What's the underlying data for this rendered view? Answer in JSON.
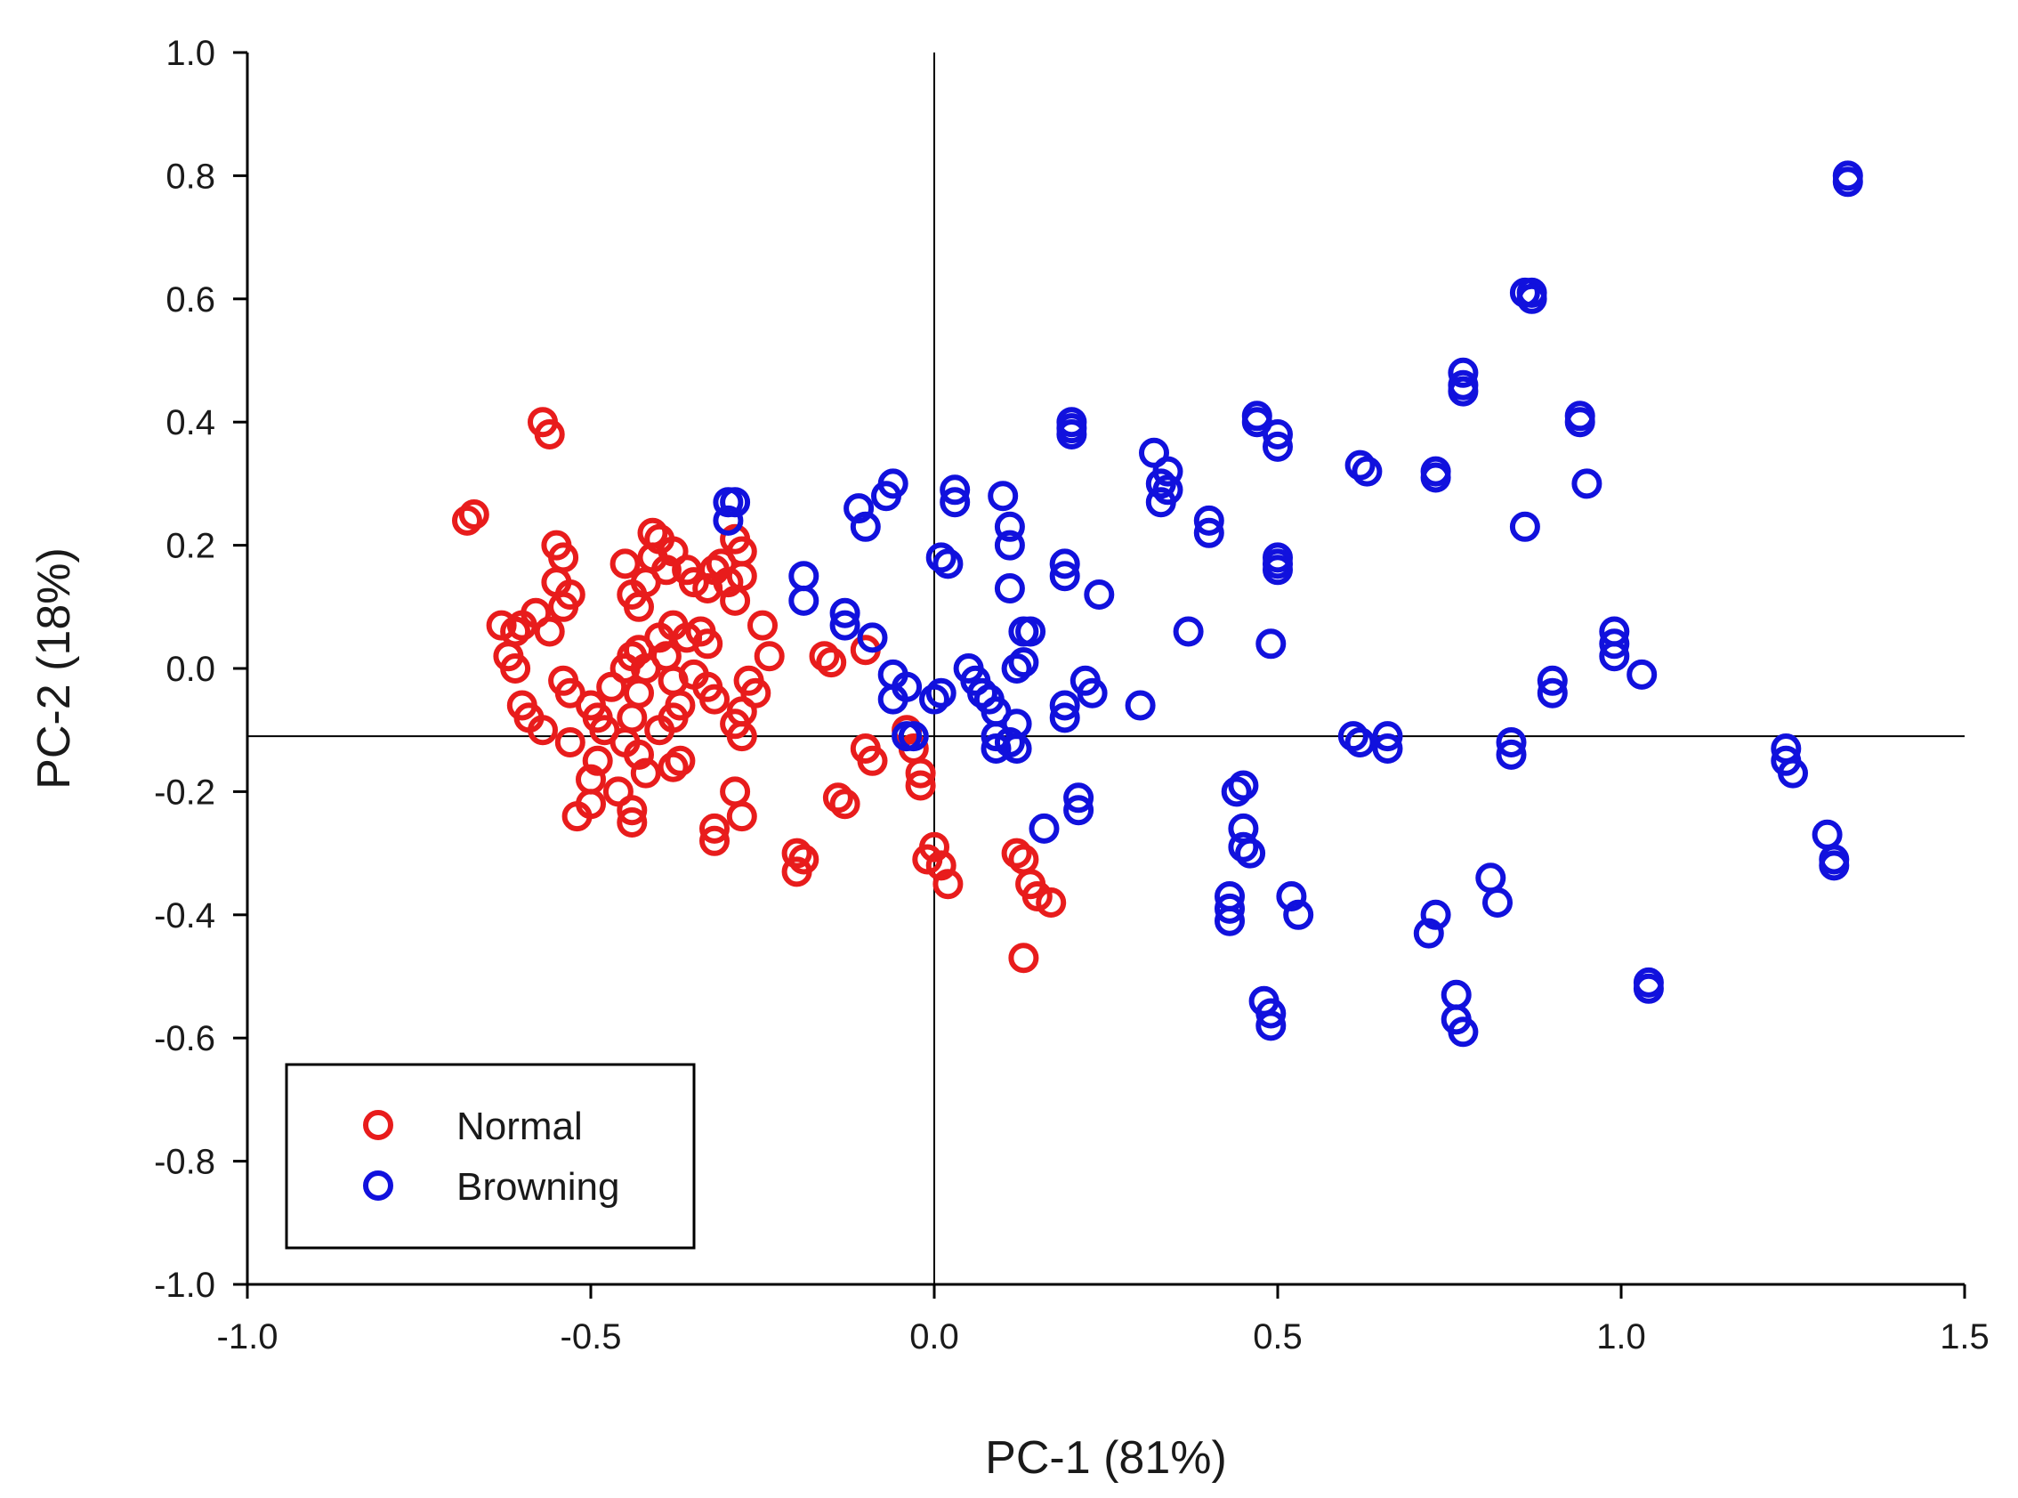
{
  "chart_data": {
    "type": "scatter",
    "title": "",
    "xlabel": "PC-1 (81%)",
    "ylabel": "PC-2 (18%)",
    "xlim": [
      -1.0,
      1.5
    ],
    "ylim": [
      -1.0,
      1.0
    ],
    "x_ticks": [
      "-1.0",
      "-0.5",
      "0.0",
      "0.5",
      "1.0",
      "1.5"
    ],
    "y_ticks": [
      "1.0",
      "0.8",
      "0.6",
      "0.4",
      "0.2",
      "0.0",
      "-0.2",
      "-0.4",
      "-0.6",
      "-0.8",
      "-1.0"
    ],
    "reference_lines": {
      "x": 0.0,
      "y": -0.11
    },
    "grid": false,
    "legend_position": "bottom-left",
    "marker": "open-circle",
    "series": [
      {
        "name": "Normal",
        "color": "#e81c1c",
        "points": [
          [
            -0.57,
            0.4
          ],
          [
            -0.56,
            0.38
          ],
          [
            -0.68,
            0.24
          ],
          [
            -0.67,
            0.25
          ],
          [
            -0.55,
            0.2
          ],
          [
            -0.54,
            0.18
          ],
          [
            -0.55,
            0.14
          ],
          [
            -0.53,
            0.12
          ],
          [
            -0.54,
            0.1
          ],
          [
            -0.58,
            0.09
          ],
          [
            -0.6,
            0.07
          ],
          [
            -0.63,
            0.07
          ],
          [
            -0.61,
            0.06
          ],
          [
            -0.56,
            0.06
          ],
          [
            -0.62,
            0.02
          ],
          [
            -0.61,
            0.0
          ],
          [
            -0.54,
            -0.02
          ],
          [
            -0.53,
            -0.04
          ],
          [
            -0.6,
            -0.06
          ],
          [
            -0.59,
            -0.08
          ],
          [
            -0.57,
            -0.1
          ],
          [
            -0.53,
            -0.12
          ],
          [
            -0.5,
            -0.06
          ],
          [
            -0.49,
            -0.08
          ],
          [
            -0.48,
            -0.1
          ],
          [
            -0.49,
            -0.15
          ],
          [
            -0.5,
            -0.18
          ],
          [
            -0.52,
            -0.24
          ],
          [
            -0.5,
            -0.22
          ],
          [
            -0.46,
            -0.2
          ],
          [
            -0.44,
            -0.23
          ],
          [
            -0.44,
            -0.25
          ],
          [
            -0.47,
            -0.03
          ],
          [
            -0.45,
            0.0
          ],
          [
            -0.44,
            0.02
          ],
          [
            -0.43,
            0.03
          ],
          [
            -0.42,
            0.0
          ],
          [
            -0.43,
            -0.04
          ],
          [
            -0.44,
            -0.08
          ],
          [
            -0.45,
            -0.12
          ],
          [
            -0.43,
            -0.14
          ],
          [
            -0.42,
            -0.17
          ],
          [
            -0.4,
            -0.1
          ],
          [
            -0.38,
            -0.08
          ],
          [
            -0.37,
            -0.06
          ],
          [
            -0.38,
            -0.02
          ],
          [
            -0.39,
            0.02
          ],
          [
            -0.4,
            0.05
          ],
          [
            -0.38,
            0.07
          ],
          [
            -0.36,
            0.05
          ],
          [
            -0.34,
            0.06
          ],
          [
            -0.33,
            0.04
          ],
          [
            -0.35,
            -0.01
          ],
          [
            -0.33,
            -0.03
          ],
          [
            -0.32,
            -0.05
          ],
          [
            -0.37,
            -0.15
          ],
          [
            -0.38,
            -0.16
          ],
          [
            -0.45,
            0.17
          ],
          [
            -0.44,
            0.12
          ],
          [
            -0.43,
            0.1
          ],
          [
            -0.42,
            0.14
          ],
          [
            -0.41,
            0.18
          ],
          [
            -0.41,
            0.22
          ],
          [
            -0.4,
            0.21
          ],
          [
            -0.39,
            0.16
          ],
          [
            -0.38,
            0.19
          ],
          [
            -0.36,
            0.16
          ],
          [
            -0.35,
            0.14
          ],
          [
            -0.33,
            0.13
          ],
          [
            -0.32,
            0.16
          ],
          [
            -0.31,
            0.17
          ],
          [
            -0.3,
            0.14
          ],
          [
            -0.29,
            0.11
          ],
          [
            -0.28,
            0.15
          ],
          [
            -0.28,
            0.19
          ],
          [
            -0.29,
            0.21
          ],
          [
            -0.25,
            0.07
          ],
          [
            -0.24,
            0.02
          ],
          [
            -0.27,
            -0.02
          ],
          [
            -0.26,
            -0.04
          ],
          [
            -0.28,
            -0.07
          ],
          [
            -0.29,
            -0.09
          ],
          [
            -0.28,
            -0.11
          ],
          [
            -0.29,
            -0.2
          ],
          [
            -0.28,
            -0.24
          ],
          [
            -0.32,
            -0.26
          ],
          [
            -0.32,
            -0.28
          ],
          [
            -0.2,
            -0.3
          ],
          [
            -0.19,
            -0.31
          ],
          [
            -0.2,
            -0.33
          ],
          [
            -0.16,
            0.02
          ],
          [
            -0.15,
            0.01
          ],
          [
            -0.14,
            -0.21
          ],
          [
            -0.13,
            -0.22
          ],
          [
            -0.1,
            0.03
          ],
          [
            -0.1,
            -0.13
          ],
          [
            -0.09,
            -0.15
          ],
          [
            -0.04,
            -0.1
          ],
          [
            -0.03,
            -0.13
          ],
          [
            -0.02,
            -0.17
          ],
          [
            -0.02,
            -0.19
          ],
          [
            0.0,
            -0.29
          ],
          [
            -0.01,
            -0.31
          ],
          [
            0.01,
            -0.32
          ],
          [
            0.02,
            -0.35
          ],
          [
            0.12,
            -0.3
          ],
          [
            0.13,
            -0.31
          ],
          [
            0.14,
            -0.35
          ],
          [
            0.15,
            -0.37
          ],
          [
            0.17,
            -0.38
          ],
          [
            0.13,
            -0.47
          ]
        ]
      },
      {
        "name": "Browning",
        "color": "#1111dd",
        "points": [
          [
            1.33,
            0.8
          ],
          [
            1.33,
            0.79
          ],
          [
            0.86,
            0.61
          ],
          [
            0.87,
            0.61
          ],
          [
            0.87,
            0.6
          ],
          [
            0.77,
            0.48
          ],
          [
            0.77,
            0.46
          ],
          [
            0.77,
            0.45
          ],
          [
            0.94,
            0.41
          ],
          [
            0.94,
            0.4
          ],
          [
            0.95,
            0.3
          ],
          [
            0.86,
            0.23
          ],
          [
            0.47,
            0.41
          ],
          [
            0.47,
            0.4
          ],
          [
            0.5,
            0.38
          ],
          [
            0.5,
            0.36
          ],
          [
            0.62,
            0.33
          ],
          [
            0.63,
            0.32
          ],
          [
            0.73,
            0.31
          ],
          [
            0.73,
            0.32
          ],
          [
            0.2,
            0.4
          ],
          [
            0.2,
            0.39
          ],
          [
            0.2,
            0.38
          ],
          [
            0.32,
            0.35
          ],
          [
            0.34,
            0.32
          ],
          [
            0.33,
            0.3
          ],
          [
            0.34,
            0.29
          ],
          [
            0.33,
            0.27
          ],
          [
            0.4,
            0.24
          ],
          [
            0.4,
            0.22
          ],
          [
            0.5,
            0.18
          ],
          [
            0.5,
            0.17
          ],
          [
            0.5,
            0.16
          ],
          [
            0.37,
            0.06
          ],
          [
            0.49,
            0.04
          ],
          [
            0.99,
            0.06
          ],
          [
            0.99,
            0.04
          ],
          [
            0.99,
            0.02
          ],
          [
            1.03,
            -0.01
          ],
          [
            0.9,
            -0.02
          ],
          [
            0.9,
            -0.04
          ],
          [
            -0.3,
            0.27
          ],
          [
            -0.29,
            0.27
          ],
          [
            -0.3,
            0.24
          ],
          [
            -0.19,
            0.15
          ],
          [
            -0.19,
            0.11
          ],
          [
            -0.13,
            0.09
          ],
          [
            -0.13,
            0.07
          ],
          [
            -0.09,
            0.05
          ],
          [
            -0.11,
            0.26
          ],
          [
            -0.1,
            0.23
          ],
          [
            -0.07,
            0.28
          ],
          [
            -0.06,
            0.3
          ],
          [
            0.03,
            0.29
          ],
          [
            0.03,
            0.27
          ],
          [
            0.1,
            0.28
          ],
          [
            0.11,
            0.23
          ],
          [
            0.11,
            0.2
          ],
          [
            0.01,
            0.18
          ],
          [
            0.02,
            0.17
          ],
          [
            0.11,
            0.13
          ],
          [
            0.19,
            0.17
          ],
          [
            0.19,
            0.15
          ],
          [
            0.24,
            0.12
          ],
          [
            0.13,
            0.06
          ],
          [
            0.14,
            0.06
          ],
          [
            0.13,
            0.01
          ],
          [
            0.12,
            0.0
          ],
          [
            -0.06,
            -0.01
          ],
          [
            -0.06,
            -0.05
          ],
          [
            -0.04,
            -0.03
          ],
          [
            -0.03,
            -0.11
          ],
          [
            -0.04,
            -0.11
          ],
          [
            0.0,
            -0.05
          ],
          [
            0.01,
            -0.04
          ],
          [
            0.05,
            0.0
          ],
          [
            0.06,
            -0.02
          ],
          [
            0.07,
            -0.04
          ],
          [
            0.08,
            -0.05
          ],
          [
            0.09,
            -0.07
          ],
          [
            0.22,
            -0.02
          ],
          [
            0.23,
            -0.04
          ],
          [
            0.3,
            -0.06
          ],
          [
            0.19,
            -0.06
          ],
          [
            0.19,
            -0.08
          ],
          [
            0.12,
            -0.09
          ],
          [
            0.09,
            -0.11
          ],
          [
            0.09,
            -0.13
          ],
          [
            0.11,
            -0.12
          ],
          [
            0.12,
            -0.13
          ],
          [
            0.21,
            -0.21
          ],
          [
            0.21,
            -0.23
          ],
          [
            0.16,
            -0.26
          ],
          [
            0.45,
            -0.19
          ],
          [
            0.44,
            -0.2
          ],
          [
            0.45,
            -0.26
          ],
          [
            0.45,
            -0.29
          ],
          [
            0.46,
            -0.3
          ],
          [
            0.43,
            -0.37
          ],
          [
            0.43,
            -0.39
          ],
          [
            0.43,
            -0.41
          ],
          [
            0.52,
            -0.37
          ],
          [
            0.53,
            -0.4
          ],
          [
            0.48,
            -0.54
          ],
          [
            0.49,
            -0.56
          ],
          [
            0.49,
            -0.58
          ],
          [
            0.61,
            -0.11
          ],
          [
            0.62,
            -0.12
          ],
          [
            0.66,
            -0.11
          ],
          [
            0.66,
            -0.13
          ],
          [
            0.84,
            -0.12
          ],
          [
            0.84,
            -0.14
          ],
          [
            0.73,
            -0.4
          ],
          [
            0.72,
            -0.43
          ],
          [
            0.81,
            -0.34
          ],
          [
            0.82,
            -0.38
          ],
          [
            0.76,
            -0.53
          ],
          [
            0.76,
            -0.57
          ],
          [
            0.77,
            -0.59
          ],
          [
            1.04,
            -0.51
          ],
          [
            1.04,
            -0.52
          ],
          [
            1.24,
            -0.13
          ],
          [
            1.24,
            -0.15
          ],
          [
            1.25,
            -0.17
          ],
          [
            1.3,
            -0.27
          ],
          [
            1.31,
            -0.31
          ],
          [
            1.31,
            -0.32
          ]
        ]
      }
    ]
  }
}
